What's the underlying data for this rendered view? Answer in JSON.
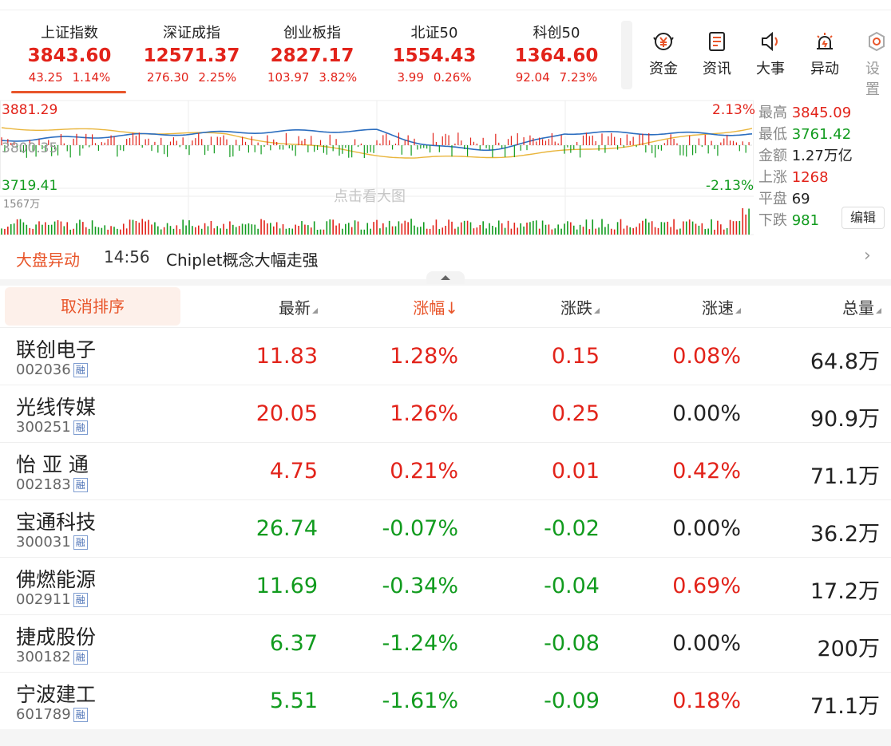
{
  "indices": [
    {
      "name": "上证指数",
      "value": "3843.60",
      "change": "43.25",
      "pct": "1.14%"
    },
    {
      "name": "深证成指",
      "value": "12571.37",
      "change": "276.30",
      "pct": "2.25%"
    },
    {
      "name": "创业板指",
      "value": "2827.17",
      "change": "103.97",
      "pct": "3.82%"
    },
    {
      "name": "北证50",
      "value": "1554.43",
      "change": "3.99",
      "pct": "0.26%"
    },
    {
      "name": "科创50",
      "value": "1364.60",
      "change": "92.04",
      "pct": "7.23%"
    }
  ],
  "tools": [
    {
      "label": "资金",
      "icon": "fund-icon"
    },
    {
      "label": "资讯",
      "icon": "news-icon"
    },
    {
      "label": "大事",
      "icon": "speaker-icon"
    },
    {
      "label": "异动",
      "icon": "alarm-icon"
    },
    {
      "label": "设置",
      "icon": "settings-icon"
    }
  ],
  "chart": {
    "high_price": "3881.29",
    "mid_price": "3800.35",
    "low_price": "3719.41",
    "high_pct": "2.13%",
    "low_pct": "-2.13%",
    "volume_max": "1567万",
    "watermark": "点击看大图",
    "edit_label": "编辑",
    "stats": [
      {
        "key": "最高",
        "value": "3845.09",
        "color": "red"
      },
      {
        "key": "最低",
        "value": "3761.42",
        "color": "green"
      },
      {
        "key": "金额",
        "value": "1.27万亿",
        "color": "dark"
      },
      {
        "key": "上涨",
        "value": "1268",
        "color": "red"
      },
      {
        "key": "平盘",
        "value": "69",
        "color": "dark"
      },
      {
        "key": "下跌",
        "value": "981",
        "color": "green"
      }
    ]
  },
  "alert": {
    "tag": "大盘异动",
    "time": "14:56",
    "message": "Chiplet概念大幅走强"
  },
  "table": {
    "sort_label": "取消排序",
    "columns": [
      "最新",
      "涨幅↓",
      "涨跌",
      "涨速",
      "总量"
    ],
    "rows": [
      {
        "name": "联创电子",
        "code": "002036",
        "rong": "融",
        "price": "11.83",
        "pct": "1.28%",
        "chg": "0.15",
        "speed": "0.08%",
        "vol": "64.8万",
        "dir": "up",
        "speed_dir": "up"
      },
      {
        "name": "光线传媒",
        "code": "300251",
        "rong": "融",
        "price": "20.05",
        "pct": "1.26%",
        "chg": "0.25",
        "speed": "0.00%",
        "vol": "90.9万",
        "dir": "up",
        "speed_dir": "flat"
      },
      {
        "name": "怡 亚 通",
        "code": "002183",
        "rong": "融",
        "price": "4.75",
        "pct": "0.21%",
        "chg": "0.01",
        "speed": "0.42%",
        "vol": "71.1万",
        "dir": "up",
        "speed_dir": "up"
      },
      {
        "name": "宝通科技",
        "code": "300031",
        "rong": "融",
        "price": "26.74",
        "pct": "-0.07%",
        "chg": "-0.02",
        "speed": "0.00%",
        "vol": "36.2万",
        "dir": "down",
        "speed_dir": "flat"
      },
      {
        "name": "佛燃能源",
        "code": "002911",
        "rong": "融",
        "price": "11.69",
        "pct": "-0.34%",
        "chg": "-0.04",
        "speed": "0.69%",
        "vol": "17.2万",
        "dir": "down",
        "speed_dir": "up"
      },
      {
        "name": "捷成股份",
        "code": "300182",
        "rong": "融",
        "price": "6.37",
        "pct": "-1.24%",
        "chg": "-0.08",
        "speed": "0.00%",
        "vol": "200万",
        "dir": "down",
        "speed_dir": "flat"
      },
      {
        "name": "宁波建工",
        "code": "601789",
        "rong": "融",
        "price": "5.51",
        "pct": "-1.61%",
        "chg": "-0.09",
        "speed": "0.18%",
        "vol": "71.1万",
        "dir": "down",
        "speed_dir": "up"
      }
    ]
  },
  "colors": {
    "up": "#e2231a",
    "down": "#119b1e",
    "accent": "#e8552a",
    "price_line": "#2c6ebf",
    "avg_line": "#e9b53c"
  }
}
